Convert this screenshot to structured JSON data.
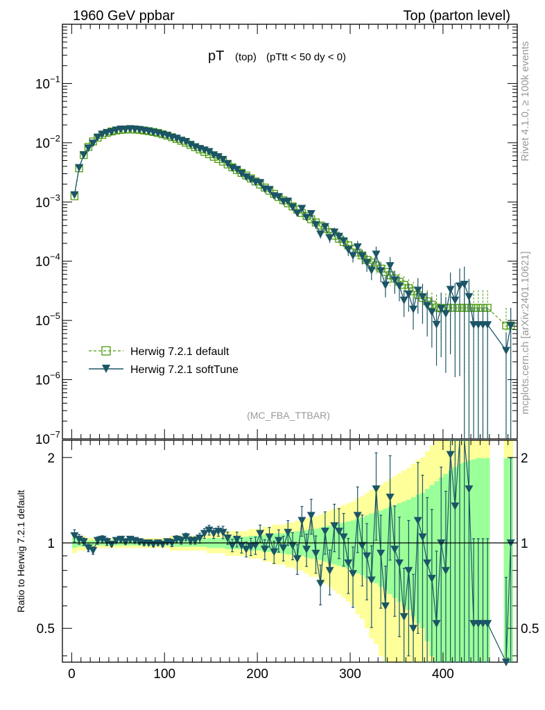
{
  "header": {
    "left": "1960 GeV ppbar",
    "right": "Top (parton level)"
  },
  "side_labels": {
    "rivet": "Rivet 4.1.0, ≥ 100k events",
    "mcplots": "mcplots.cern.ch [arXiv:2401.10621]"
  },
  "colors": {
    "default": "#4a9a0a",
    "softtune": "#1b5566",
    "band_yellow": "#ffff99",
    "band_green": "#99ff99",
    "axis": "#000000",
    "watermark": "#999999"
  },
  "chart_data": {
    "type": "line",
    "title_main": "pT",
    "title_sub": "(top)",
    "title_cut": "(pTtt < 50 dy < 0)",
    "watermark": "(MC_FBA_TTBAR)",
    "xlabel": "",
    "ylabel_ratio": "Ratio to Herwig 7.2.1 default",
    "xlim": [
      -10,
      480
    ],
    "ylim_main": [
      1e-07,
      1
    ],
    "ylim_ratio": [
      0.38,
      2.3
    ],
    "x_ticks": [
      0,
      100,
      200,
      300,
      400
    ],
    "x_tick_labels": [
      "0",
      "100",
      "200",
      "300",
      "400"
    ],
    "y_tick_labels_main": [
      {
        "base": "10",
        "exp": "−7",
        "logv": -7
      },
      {
        "base": "10",
        "exp": "−6",
        "logv": -6
      },
      {
        "base": "10",
        "exp": "−5",
        "logv": -5
      },
      {
        "base": "10",
        "exp": "−4",
        "logv": -4
      },
      {
        "base": "10",
        "exp": "−3",
        "logv": -3
      },
      {
        "base": "10",
        "exp": "−2",
        "logv": -2
      },
      {
        "base": "10",
        "exp": "−1",
        "logv": -1
      }
    ],
    "y_ticks_ratio": [
      0.5,
      1,
      2
    ],
    "y_tick_labels_ratio": [
      "0.5",
      "1",
      "2"
    ],
    "legend_position": "lower-left",
    "series": [
      {
        "name": "Herwig 7.2.1 default",
        "style": "dashed-open-square",
        "x": [
          3,
          8,
          13,
          18,
          23,
          28,
          33,
          38,
          43,
          48,
          53,
          58,
          63,
          68,
          73,
          78,
          83,
          88,
          93,
          98,
          103,
          108,
          113,
          118,
          123,
          128,
          133,
          138,
          143,
          148,
          153,
          158,
          163,
          168,
          173,
          178,
          183,
          188,
          193,
          198,
          203,
          208,
          213,
          218,
          223,
          228,
          233,
          238,
          243,
          248,
          253,
          258,
          263,
          268,
          273,
          278,
          283,
          288,
          293,
          298,
          303,
          308,
          313,
          318,
          323,
          328,
          333,
          338,
          343,
          348,
          353,
          358,
          363,
          368,
          373,
          378,
          383,
          388,
          393,
          398,
          403,
          408,
          413,
          418,
          423,
          428,
          433,
          438,
          443,
          448,
          468,
          473
        ],
        "y": [
          0.00125,
          0.0037,
          0.0062,
          0.0085,
          0.0105,
          0.0122,
          0.0136,
          0.0147,
          0.0155,
          0.0161,
          0.0165,
          0.0167,
          0.0168,
          0.0167,
          0.0165,
          0.0161,
          0.0157,
          0.0152,
          0.0146,
          0.0139,
          0.0132,
          0.0124,
          0.0116,
          0.0108,
          0.01,
          0.0092,
          0.0084,
          0.0077,
          0.007,
          0.0064,
          0.0058,
          0.0053,
          0.0048,
          0.0043,
          0.00385,
          0.00345,
          0.0031,
          0.0028,
          0.0025,
          0.00222,
          0.00197,
          0.00175,
          0.00155,
          0.00137,
          0.00121,
          0.00107,
          0.00095,
          0.00084,
          0.00074,
          0.00065,
          0.00058,
          0.00051,
          0.00045,
          0.0004,
          0.00035,
          0.00031,
          0.00027,
          0.00024,
          0.00021,
          0.000185,
          0.00016,
          0.00014,
          0.000125,
          0.000105,
          9.5e-05,
          8.5e-05,
          7.5e-05,
          6.6e-05,
          5.8e-05,
          5.1e-05,
          4.5e-05,
          4e-05,
          3.5e-05,
          3.1e-05,
          2.7e-05,
          2.4e-05,
          2.1e-05,
          1.85e-05,
          1.65e-05,
          1.6e-05,
          1.63e-05,
          1.63e-05,
          1.63e-05,
          1.63e-05,
          1.63e-05,
          1.63e-05,
          1.63e-05,
          1.63e-05,
          1.63e-05,
          1.63e-05,
          8.2e-06,
          8.2e-06
        ],
        "err_rel": [
          0.04,
          0.03,
          0.03,
          0.02,
          0.02,
          0.02,
          0.02,
          0.02,
          0.02,
          0.02,
          0.02,
          0.02,
          0.02,
          0.02,
          0.02,
          0.02,
          0.02,
          0.02,
          0.02,
          0.02,
          0.02,
          0.03,
          0.03,
          0.03,
          0.03,
          0.03,
          0.03,
          0.03,
          0.03,
          0.04,
          0.04,
          0.04,
          0.04,
          0.05,
          0.05,
          0.05,
          0.05,
          0.05,
          0.06,
          0.06,
          0.06,
          0.07,
          0.07,
          0.08,
          0.08,
          0.08,
          0.09,
          0.09,
          0.1,
          0.1,
          0.11,
          0.12,
          0.12,
          0.13,
          0.14,
          0.15,
          0.16,
          0.17,
          0.18,
          0.19,
          0.2,
          0.22,
          0.23,
          0.25,
          0.27,
          0.28,
          0.3,
          0.32,
          0.34,
          0.36,
          0.38,
          0.4,
          0.42,
          0.45,
          0.48,
          0.5,
          0.55,
          0.6,
          0.65,
          0.7,
          0.75,
          0.8,
          0.85,
          0.9,
          0.92,
          0.95,
          0.97,
          0.99,
          0.99,
          0.99,
          0.99,
          0.99
        ]
      },
      {
        "name": "Herwig 7.2.1 softTune",
        "style": "solid-filled-triangle-down",
        "x": [
          3,
          8,
          13,
          18,
          23,
          28,
          33,
          38,
          43,
          48,
          53,
          58,
          63,
          68,
          73,
          78,
          83,
          88,
          93,
          98,
          103,
          108,
          113,
          118,
          123,
          128,
          133,
          138,
          143,
          148,
          153,
          158,
          163,
          168,
          173,
          178,
          183,
          188,
          193,
          198,
          203,
          208,
          213,
          218,
          223,
          228,
          233,
          238,
          243,
          248,
          253,
          258,
          263,
          268,
          273,
          278,
          283,
          288,
          293,
          298,
          303,
          308,
          313,
          318,
          323,
          328,
          333,
          338,
          343,
          348,
          353,
          358,
          363,
          368,
          373,
          378,
          383,
          388,
          393,
          398,
          403,
          408,
          413,
          418,
          423,
          428,
          433,
          438,
          443,
          448,
          468,
          473
        ],
        "ratio": [
          1.06,
          1.03,
          1.01,
          0.96,
          0.94,
          1.02,
          1.03,
          1.01,
          0.99,
          1.02,
          1.03,
          1.01,
          1.03,
          1.02,
          1.01,
          1.0,
          1.0,
          0.99,
          1.0,
          0.99,
          1.01,
          1.0,
          1.03,
          1.02,
          1.05,
          1.02,
          1.02,
          1.04,
          1.08,
          1.11,
          1.08,
          1.1,
          1.09,
          1.04,
          0.98,
          1.03,
          0.98,
          0.95,
          0.97,
          0.98,
          1.08,
          0.95,
          1.05,
          0.93,
          1.02,
          0.96,
          1.09,
          0.98,
          0.88,
          1.2,
          0.95,
          1.25,
          0.92,
          0.72,
          1.1,
          0.8,
          1.15,
          1.1,
          1.05,
          0.85,
          0.78,
          1.25,
          0.98,
          0.9,
          0.74,
          1.55,
          0.92,
          0.6,
          1.45,
          0.95,
          0.85,
          0.55,
          0.8,
          0.5,
          1.2,
          1.05,
          0.85,
          0.75,
          0.52,
          1.0,
          0.8,
          2.05,
          1.35,
          2.35,
          2.5,
          1.55,
          0.52,
          0.52,
          0.52,
          0.52,
          0.38,
          1.0
        ],
        "err_rel": [
          0.05,
          0.04,
          0.03,
          0.03,
          0.03,
          0.03,
          0.03,
          0.03,
          0.02,
          0.02,
          0.02,
          0.02,
          0.02,
          0.02,
          0.02,
          0.02,
          0.02,
          0.02,
          0.02,
          0.02,
          0.02,
          0.03,
          0.03,
          0.03,
          0.03,
          0.03,
          0.03,
          0.04,
          0.04,
          0.04,
          0.04,
          0.04,
          0.05,
          0.05,
          0.05,
          0.06,
          0.06,
          0.06,
          0.07,
          0.07,
          0.07,
          0.08,
          0.08,
          0.09,
          0.09,
          0.1,
          0.1,
          0.11,
          0.12,
          0.12,
          0.13,
          0.14,
          0.15,
          0.16,
          0.17,
          0.18,
          0.19,
          0.2,
          0.21,
          0.22,
          0.24,
          0.26,
          0.28,
          0.3,
          0.32,
          0.34,
          0.36,
          0.38,
          0.4,
          0.42,
          0.45,
          0.48,
          0.5,
          0.55,
          0.6,
          0.65,
          0.7,
          0.75,
          0.8,
          0.85,
          0.9,
          0.92,
          0.95,
          0.97,
          0.99,
          0.99,
          0.99,
          0.99,
          0.99,
          0.99,
          0.99,
          0.99
        ]
      }
    ]
  }
}
